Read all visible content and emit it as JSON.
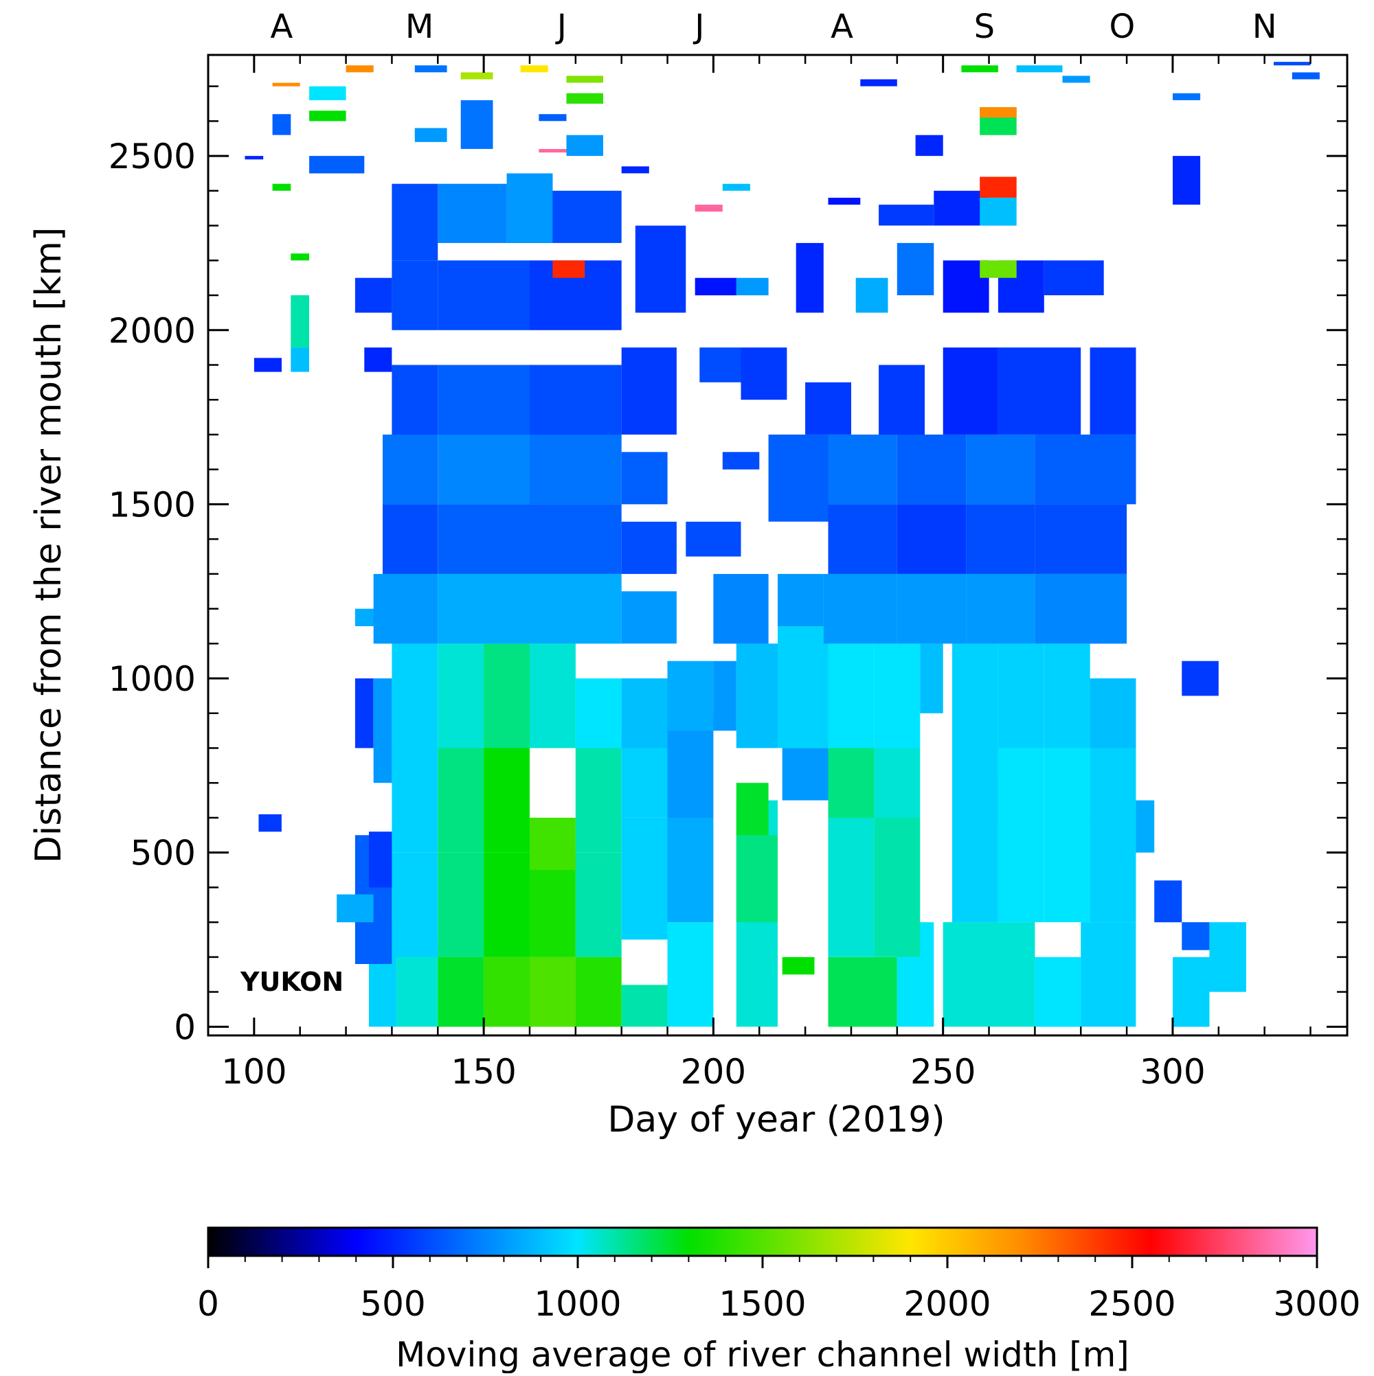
{
  "chart_data": {
    "type": "heatmap",
    "title": "",
    "annotation": "YUKON",
    "xlabel": "Day of year (2019)",
    "ylabel": "Distance from the river mouth [km]",
    "xlim": [
      90,
      338
    ],
    "ylim": [
      -25,
      2790
    ],
    "x_ticks": [
      100,
      150,
      200,
      250,
      300
    ],
    "y_ticks": [
      0,
      500,
      1000,
      1500,
      2000,
      2500
    ],
    "month_labels": [
      {
        "label": "A",
        "day": 106
      },
      {
        "label": "M",
        "day": 136
      },
      {
        "label": "J",
        "day": 167
      },
      {
        "label": "J",
        "day": 197
      },
      {
        "label": "A",
        "day": 228
      },
      {
        "label": "S",
        "day": 259
      },
      {
        "label": "O",
        "day": 289
      },
      {
        "label": "N",
        "day": 320
      }
    ],
    "colorbar": {
      "label": "Moving average of river channel width [m]",
      "range": [
        0,
        3000
      ],
      "ticks": [
        0,
        500,
        1000,
        1500,
        2000,
        2500,
        3000
      ],
      "stops": [
        {
          "value": 0,
          "color": "#000000"
        },
        {
          "value": 400,
          "color": "#0000ff"
        },
        {
          "value": 1000,
          "color": "#00e5ff"
        },
        {
          "value": 1300,
          "color": "#00e000"
        },
        {
          "value": 1900,
          "color": "#ffe600"
        },
        {
          "value": 2200,
          "color": "#ff8c00"
        },
        {
          "value": 2550,
          "color": "#ff0000"
        },
        {
          "value": 3000,
          "color": "#ff99ee"
        }
      ]
    },
    "cells": [
      [
        125,
        131,
        0,
        300,
        950
      ],
      [
        131,
        140,
        0,
        240,
        1050
      ],
      [
        140,
        150,
        0,
        200,
        1250
      ],
      [
        150,
        160,
        0,
        200,
        1420
      ],
      [
        160,
        170,
        0,
        200,
        1480
      ],
      [
        170,
        180,
        0,
        200,
        1380
      ],
      [
        180,
        190,
        0,
        120,
        1100
      ],
      [
        190,
        200,
        0,
        300,
        1000
      ],
      [
        205,
        214,
        0,
        650,
        1050
      ],
      [
        225,
        240,
        0,
        200,
        1200
      ],
      [
        240,
        248,
        0,
        300,
        1000
      ],
      [
        250,
        270,
        0,
        300,
        1050
      ],
      [
        270,
        280,
        0,
        200,
        1000
      ],
      [
        280,
        292,
        0,
        300,
        950
      ],
      [
        300,
        308,
        0,
        200,
        950
      ],
      [
        308,
        316,
        100,
        300,
        950
      ],
      [
        122,
        130,
        180,
        550,
        650
      ],
      [
        130,
        140,
        200,
        500,
        950
      ],
      [
        140,
        150,
        200,
        500,
        1150
      ],
      [
        150,
        160,
        200,
        500,
        1300
      ],
      [
        160,
        170,
        200,
        500,
        1350
      ],
      [
        170,
        180,
        200,
        500,
        1100
      ],
      [
        180,
        190,
        250,
        600,
        950
      ],
      [
        190,
        200,
        300,
        600,
        850
      ],
      [
        205,
        214,
        300,
        550,
        1150
      ],
      [
        215,
        222,
        150,
        200,
        1300
      ],
      [
        225,
        235,
        200,
        600,
        1050
      ],
      [
        235,
        245,
        200,
        600,
        1100
      ],
      [
        252,
        262,
        300,
        700,
        950
      ],
      [
        262,
        272,
        300,
        600,
        1000
      ],
      [
        272,
        282,
        300,
        600,
        1000
      ],
      [
        282,
        292,
        300,
        600,
        950
      ],
      [
        296,
        302,
        300,
        420,
        600
      ],
      [
        302,
        308,
        220,
        300,
        650
      ],
      [
        118,
        126,
        300,
        380,
        850
      ],
      [
        125,
        130,
        400,
        560,
        550
      ],
      [
        130,
        140,
        500,
        800,
        950
      ],
      [
        140,
        150,
        500,
        800,
        1150
      ],
      [
        150,
        160,
        500,
        800,
        1300
      ],
      [
        160,
        170,
        450,
        600,
        1450
      ],
      [
        170,
        180,
        500,
        800,
        1100
      ],
      [
        180,
        190,
        600,
        850,
        950
      ],
      [
        190,
        200,
        600,
        900,
        800
      ],
      [
        205,
        212,
        550,
        700,
        1250
      ],
      [
        215,
        225,
        650,
        800,
        800
      ],
      [
        225,
        235,
        600,
        800,
        1150
      ],
      [
        235,
        245,
        600,
        800,
        1050
      ],
      [
        252,
        262,
        600,
        800,
        950
      ],
      [
        262,
        272,
        600,
        800,
        1000
      ],
      [
        272,
        282,
        600,
        800,
        1000
      ],
      [
        282,
        292,
        600,
        800,
        950
      ],
      [
        292,
        296,
        500,
        650,
        850
      ],
      [
        122,
        126,
        800,
        1000,
        550
      ],
      [
        126,
        130,
        700,
        1000,
        800
      ],
      [
        130,
        140,
        800,
        1100,
        950
      ],
      [
        140,
        150,
        800,
        1100,
        1050
      ],
      [
        150,
        160,
        800,
        1100,
        1150
      ],
      [
        160,
        170,
        800,
        1100,
        1050
      ],
      [
        170,
        180,
        800,
        1000,
        1000
      ],
      [
        180,
        190,
        800,
        1000,
        900
      ],
      [
        190,
        200,
        850,
        1050,
        850
      ],
      [
        200,
        205,
        850,
        1050,
        800
      ],
      [
        205,
        214,
        800,
        1100,
        900
      ],
      [
        214,
        225,
        800,
        1150,
        950
      ],
      [
        225,
        235,
        800,
        1100,
        1000
      ],
      [
        235,
        245,
        800,
        1100,
        1000
      ],
      [
        245,
        250,
        900,
        1100,
        900
      ],
      [
        252,
        262,
        800,
        1100,
        950
      ],
      [
        262,
        272,
        800,
        1100,
        950
      ],
      [
        272,
        282,
        800,
        1100,
        950
      ],
      [
        282,
        292,
        800,
        1000,
        900
      ],
      [
        302,
        310,
        950,
        1050,
        550
      ],
      [
        101,
        106,
        560,
        610,
        550
      ],
      [
        122,
        128,
        1150,
        1200,
        850
      ],
      [
        126,
        140,
        1100,
        1300,
        800
      ],
      [
        140,
        160,
        1100,
        1300,
        850
      ],
      [
        160,
        180,
        1100,
        1300,
        850
      ],
      [
        180,
        192,
        1100,
        1250,
        800
      ],
      [
        200,
        212,
        1100,
        1300,
        750
      ],
      [
        214,
        224,
        1150,
        1300,
        800
      ],
      [
        224,
        240,
        1100,
        1300,
        800
      ],
      [
        240,
        255,
        1100,
        1300,
        800
      ],
      [
        255,
        270,
        1100,
        1300,
        800
      ],
      [
        270,
        290,
        1100,
        1300,
        750
      ],
      [
        128,
        140,
        1300,
        1500,
        600
      ],
      [
        140,
        160,
        1300,
        1500,
        650
      ],
      [
        160,
        180,
        1300,
        1500,
        650
      ],
      [
        180,
        192,
        1300,
        1450,
        600
      ],
      [
        194,
        206,
        1350,
        1450,
        600
      ],
      [
        225,
        240,
        1300,
        1500,
        600
      ],
      [
        240,
        255,
        1300,
        1500,
        550
      ],
      [
        255,
        270,
        1300,
        1500,
        600
      ],
      [
        270,
        290,
        1300,
        1500,
        600
      ],
      [
        128,
        140,
        1500,
        1700,
        700
      ],
      [
        140,
        160,
        1500,
        1700,
        750
      ],
      [
        160,
        180,
        1500,
        1700,
        700
      ],
      [
        180,
        190,
        1500,
        1650,
        650
      ],
      [
        202,
        210,
        1600,
        1650,
        600
      ],
      [
        212,
        225,
        1450,
        1700,
        650
      ],
      [
        225,
        240,
        1500,
        1700,
        700
      ],
      [
        240,
        255,
        1500,
        1700,
        650
      ],
      [
        255,
        270,
        1500,
        1700,
        700
      ],
      [
        270,
        292,
        1500,
        1700,
        650
      ],
      [
        130,
        140,
        1700,
        1900,
        600
      ],
      [
        140,
        160,
        1700,
        1900,
        650
      ],
      [
        160,
        180,
        1700,
        1900,
        600
      ],
      [
        180,
        192,
        1700,
        1950,
        550
      ],
      [
        197,
        206,
        1850,
        1950,
        600
      ],
      [
        206,
        216,
        1800,
        1950,
        550
      ],
      [
        220,
        230,
        1700,
        1850,
        550
      ],
      [
        236,
        246,
        1700,
        1900,
        550
      ],
      [
        250,
        262,
        1700,
        1950,
        500
      ],
      [
        262,
        280,
        1700,
        1950,
        550
      ],
      [
        282,
        292,
        1700,
        1950,
        550
      ],
      [
        124,
        130,
        1880,
        1950,
        500
      ],
      [
        100,
        106,
        1880,
        1920,
        500
      ],
      [
        108,
        112,
        1880,
        1950,
        900
      ],
      [
        108,
        112,
        1950,
        2100,
        1100
      ],
      [
        122,
        130,
        2050,
        2150,
        550
      ],
      [
        130,
        140,
        2000,
        2200,
        600
      ],
      [
        140,
        160,
        2000,
        2200,
        600
      ],
      [
        160,
        180,
        2000,
        2200,
        550
      ],
      [
        183,
        194,
        2050,
        2300,
        550
      ],
      [
        196,
        205,
        2100,
        2150,
        450
      ],
      [
        205,
        212,
        2100,
        2150,
        800
      ],
      [
        218,
        224,
        2050,
        2250,
        500
      ],
      [
        231,
        238,
        2050,
        2150,
        850
      ],
      [
        240,
        248,
        2100,
        2250,
        700
      ],
      [
        250,
        260,
        2050,
        2200,
        450
      ],
      [
        262,
        272,
        2050,
        2200,
        500
      ],
      [
        272,
        285,
        2100,
        2200,
        550
      ],
      [
        108,
        112,
        2200,
        2220,
        1300
      ],
      [
        165,
        172,
        2150,
        2200,
        2450
      ],
      [
        258,
        266,
        2150,
        2200,
        1550
      ],
      [
        130,
        140,
        2200,
        2420,
        600
      ],
      [
        140,
        155,
        2250,
        2420,
        750
      ],
      [
        155,
        165,
        2250,
        2450,
        800
      ],
      [
        165,
        180,
        2250,
        2400,
        600
      ],
      [
        180,
        186,
        2450,
        2470,
        500
      ],
      [
        196,
        202,
        2340,
        2360,
        2850
      ],
      [
        202,
        208,
        2400,
        2420,
        900
      ],
      [
        225,
        232,
        2360,
        2380,
        450
      ],
      [
        236,
        248,
        2300,
        2360,
        550
      ],
      [
        248,
        260,
        2300,
        2400,
        500
      ],
      [
        258,
        266,
        2380,
        2440,
        2450
      ],
      [
        258,
        266,
        2300,
        2380,
        900
      ],
      [
        300,
        306,
        2360,
        2500,
        500
      ],
      [
        112,
        124,
        2450,
        2500,
        650
      ],
      [
        98,
        102,
        2490,
        2500,
        500
      ],
      [
        104,
        108,
        2400,
        2420,
        1300
      ],
      [
        104,
        108,
        2560,
        2620,
        650
      ],
      [
        112,
        120,
        2600,
        2630,
        1300
      ],
      [
        112,
        120,
        2660,
        2700,
        1000
      ],
      [
        104,
        110,
        2700,
        2710,
        2200
      ],
      [
        120,
        126,
        2740,
        2760,
        2200
      ],
      [
        135,
        142,
        2740,
        2760,
        700
      ],
      [
        135,
        142,
        2540,
        2580,
        800
      ],
      [
        145,
        152,
        2520,
        2660,
        700
      ],
      [
        145,
        152,
        2720,
        2740,
        1700
      ],
      [
        158,
        164,
        2740,
        2760,
        1900
      ],
      [
        162,
        170,
        2510,
        2520,
        2850
      ],
      [
        168,
        176,
        2500,
        2560,
        800
      ],
      [
        168,
        176,
        2650,
        2680,
        1400
      ],
      [
        168,
        176,
        2710,
        2730,
        1600
      ],
      [
        162,
        168,
        2600,
        2620,
        650
      ],
      [
        232,
        240,
        2700,
        2720,
        500
      ],
      [
        244,
        250,
        2500,
        2560,
        500
      ],
      [
        254,
        262,
        2740,
        2760,
        1300
      ],
      [
        258,
        266,
        2560,
        2640,
        1200
      ],
      [
        258,
        266,
        2610,
        2640,
        2200
      ],
      [
        266,
        276,
        2740,
        2760,
        900
      ],
      [
        276,
        282,
        2710,
        2730,
        800
      ],
      [
        300,
        306,
        2660,
        2680,
        700
      ],
      [
        322,
        330,
        2760,
        2770,
        600
      ],
      [
        326,
        332,
        2720,
        2740,
        650
      ]
    ]
  }
}
